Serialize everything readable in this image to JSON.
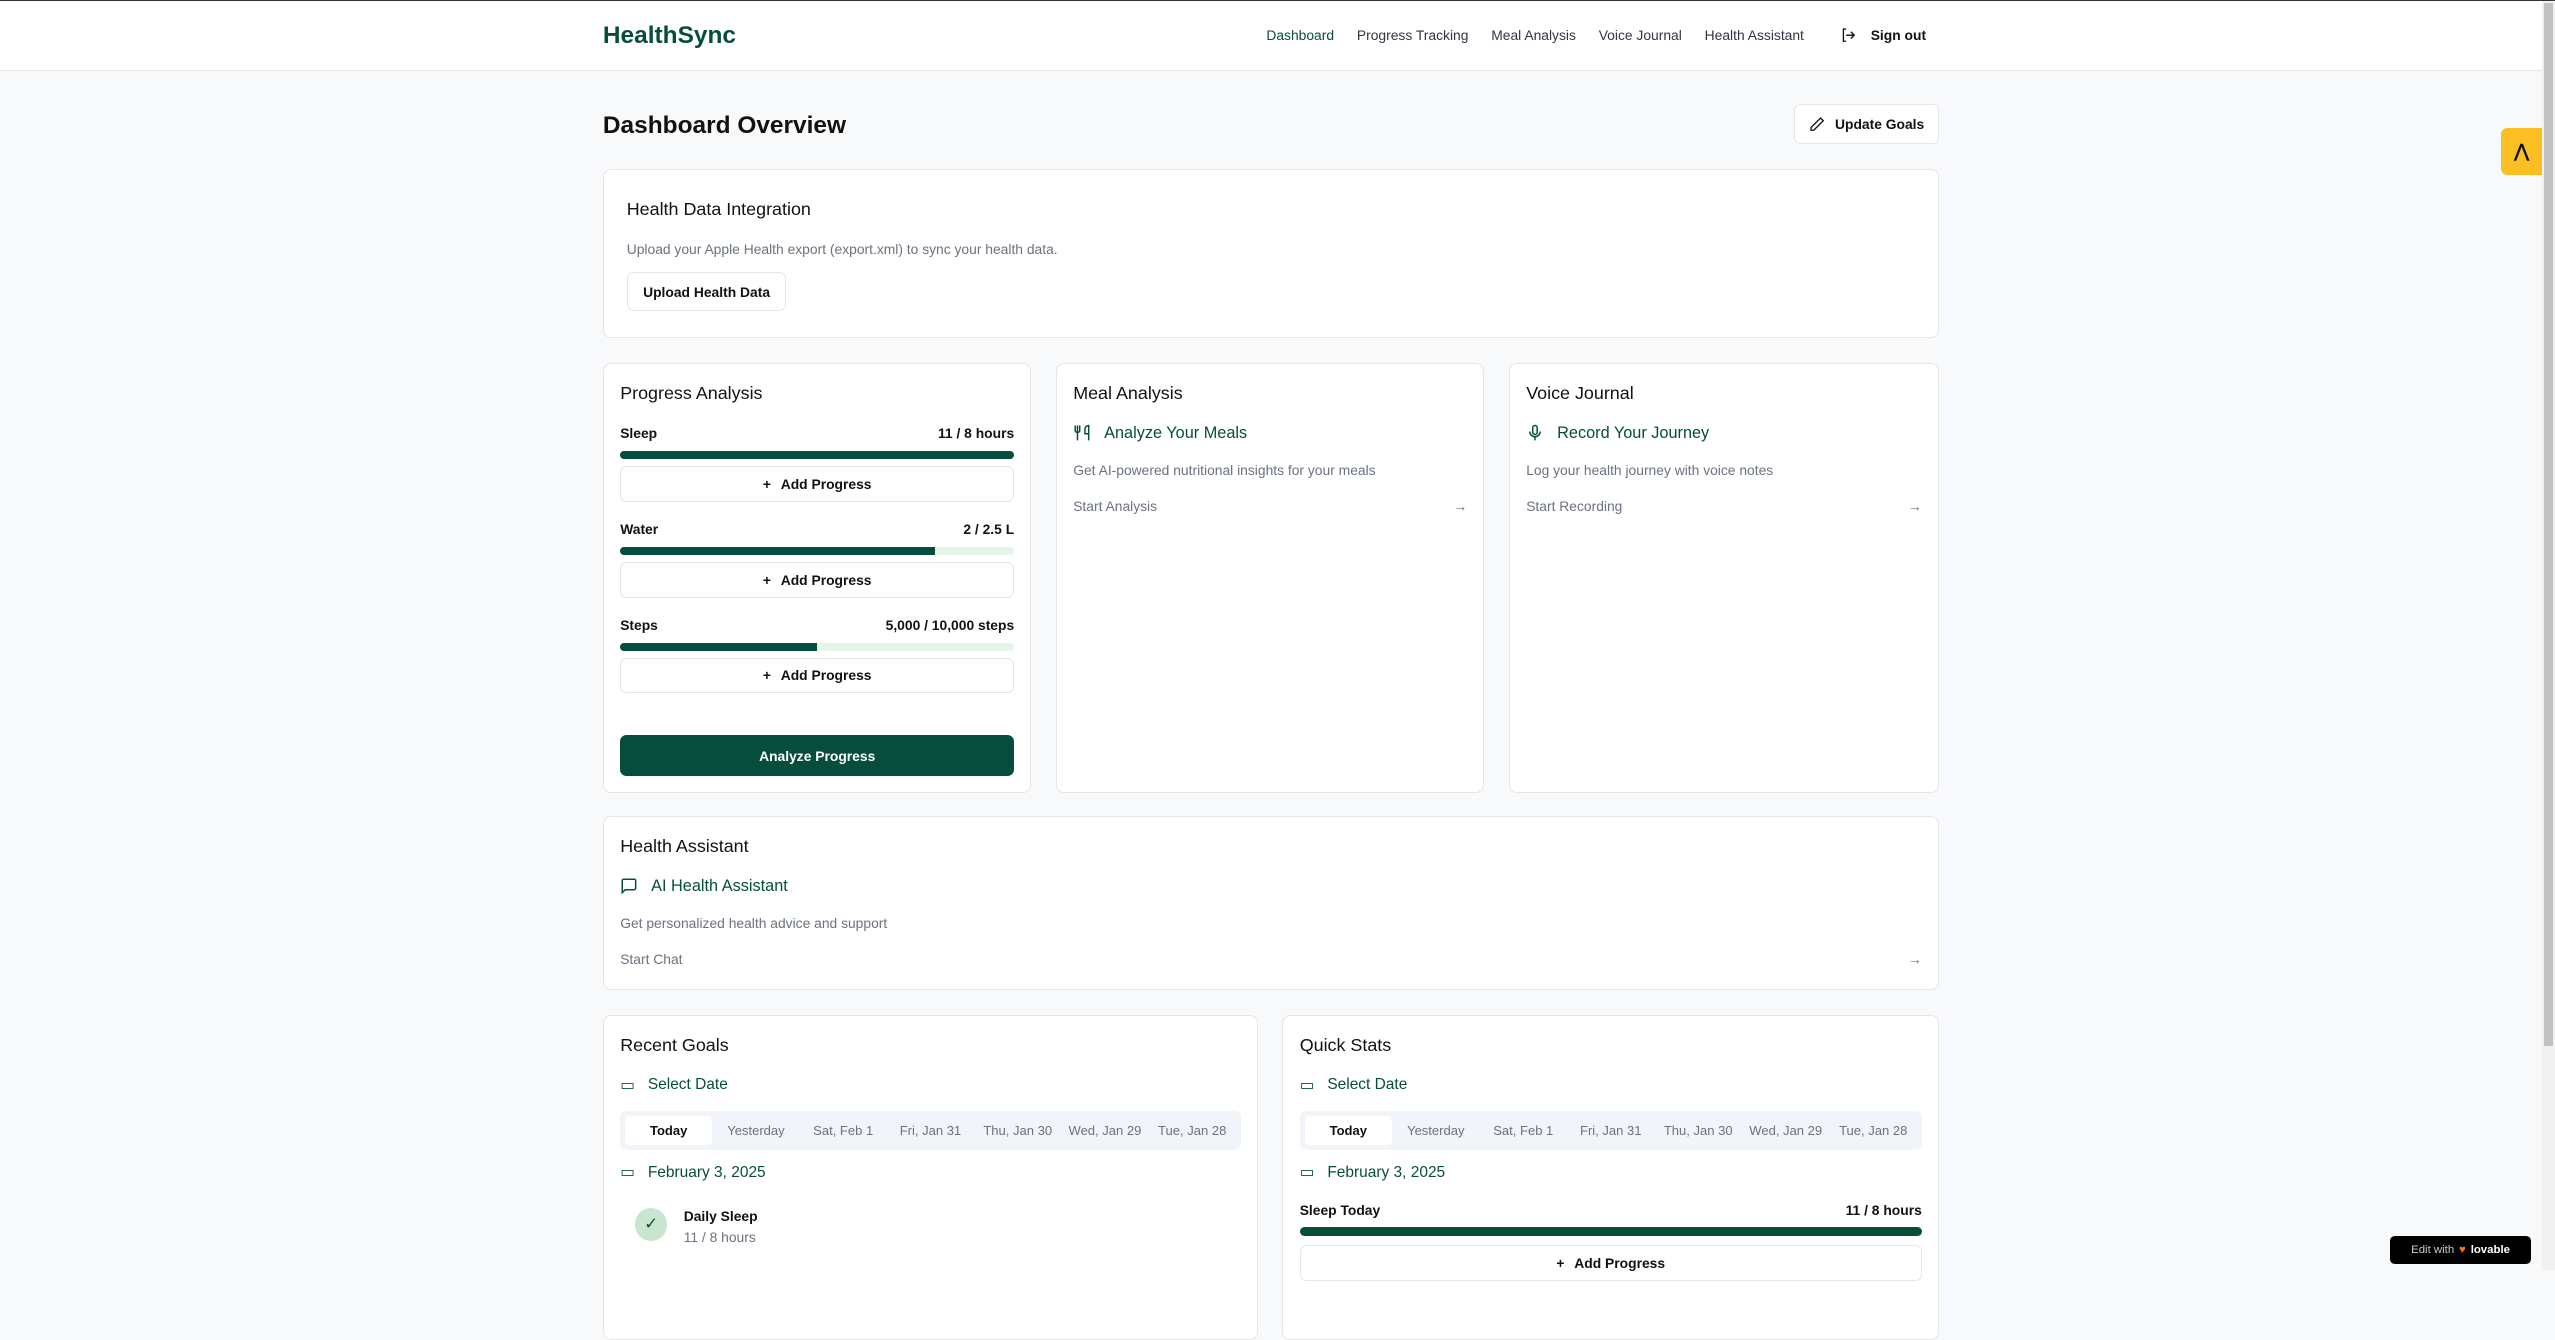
{
  "header": {
    "logo": "HealthSync",
    "nav": [
      "Dashboard",
      "Progress Tracking",
      "Meal Analysis",
      "Voice Journal",
      "Health Assistant"
    ],
    "active": "Dashboard",
    "sign_out": "Sign out"
  },
  "page": {
    "title": "Dashboard Overview",
    "update_goals": "Update Goals"
  },
  "integration": {
    "title": "Health Data Integration",
    "desc": "Upload your Apple Health export (export.xml) to sync your health data.",
    "button": "Upload Health Data"
  },
  "progress": {
    "title": "Progress Analysis",
    "items": [
      {
        "label": "Sleep",
        "value": "11 / 8 hours",
        "percent": 100
      },
      {
        "label": "Water",
        "value": "2 / 2.5 L",
        "percent": 80
      },
      {
        "label": "Steps",
        "value": "5,000 / 10,000 steps",
        "percent": 50
      }
    ],
    "add": "Add Progress",
    "analyze": "Analyze Progress"
  },
  "meal": {
    "title": "Meal Analysis",
    "subtitle": "Analyze Your Meals",
    "desc": "Get AI-powered nutritional insights for your meals",
    "link": "Start Analysis",
    "icon": "utensils-icon"
  },
  "voice": {
    "title": "Voice Journal",
    "subtitle": "Record Your Journey",
    "desc": "Log your health journey with voice notes",
    "link": "Start Recording",
    "icon": "mic-icon"
  },
  "assistant": {
    "title": "Health Assistant",
    "subtitle": "AI Health Assistant",
    "desc": "Get personalized health advice and support",
    "link": "Start Chat",
    "icon": "message-icon"
  },
  "dates": [
    "Today",
    "Yesterday",
    "Sat, Feb 1",
    "Fri, Jan 31",
    "Thu, Jan 30",
    "Wed, Jan 29",
    "Tue, Jan 28"
  ],
  "recent": {
    "title": "Recent Goals",
    "select": "Select Date",
    "date": "February 3, 2025",
    "goal": "Daily Sleep",
    "goal_value": "11 / 8 hours"
  },
  "quick": {
    "title": "Quick Stats",
    "select": "Select Date",
    "date": "February 3, 2025",
    "label": "Sleep Today",
    "value": "11 / 8 hours",
    "percent": 100,
    "add": "Add Progress"
  },
  "badge": {
    "text": "Edit with",
    "brand": "lovable"
  },
  "colors": {
    "primary": "#064e3b",
    "accent": "#fbbf24"
  }
}
